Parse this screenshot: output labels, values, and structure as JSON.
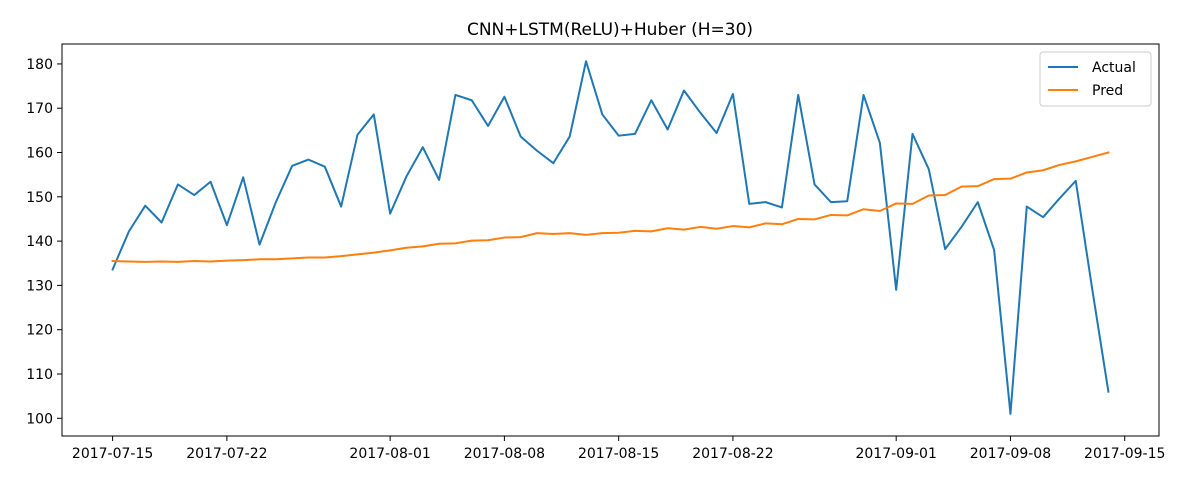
{
  "chart_data": {
    "type": "line",
    "title": "CNN+LSTM(ReLU)+Huber (H=30)",
    "xlabel": "",
    "ylabel": "",
    "x_dates": [
      "2017-07-15",
      "2017-07-16",
      "2017-07-17",
      "2017-07-18",
      "2017-07-19",
      "2017-07-20",
      "2017-07-21",
      "2017-07-22",
      "2017-07-23",
      "2017-07-24",
      "2017-07-25",
      "2017-07-26",
      "2017-07-27",
      "2017-07-28",
      "2017-07-29",
      "2017-07-30",
      "2017-07-31",
      "2017-08-01",
      "2017-08-02",
      "2017-08-03",
      "2017-08-04",
      "2017-08-05",
      "2017-08-06",
      "2017-08-07",
      "2017-08-08",
      "2017-08-09",
      "2017-08-10",
      "2017-08-11",
      "2017-08-12",
      "2017-08-13",
      "2017-08-14",
      "2017-08-15",
      "2017-08-16",
      "2017-08-17",
      "2017-08-18",
      "2017-08-19",
      "2017-08-20",
      "2017-08-21",
      "2017-08-22",
      "2017-08-23",
      "2017-08-24",
      "2017-08-25",
      "2017-08-26",
      "2017-08-27",
      "2017-08-28",
      "2017-08-29",
      "2017-08-30",
      "2017-08-31",
      "2017-09-01",
      "2017-09-02",
      "2017-09-03",
      "2017-09-04",
      "2017-09-05",
      "2017-09-06",
      "2017-09-07",
      "2017-09-08",
      "2017-09-09",
      "2017-09-10",
      "2017-09-11",
      "2017-09-12",
      "2017-09-13",
      "2017-09-14"
    ],
    "series": [
      {
        "name": "Actual",
        "color": "#1f77b4",
        "values": [
          133.6,
          142.2,
          148.0,
          144.2,
          152.8,
          150.4,
          153.4,
          143.6,
          154.4,
          139.2,
          148.8,
          157.0,
          158.4,
          156.8,
          147.8,
          164.0,
          168.6,
          146.2,
          154.6,
          161.2,
          153.8,
          173.0,
          171.8,
          166.0,
          172.6,
          163.6,
          160.4,
          157.6,
          163.6,
          180.6,
          168.6,
          163.8,
          164.2,
          171.8,
          165.2,
          174.0,
          169.0,
          164.4,
          173.2,
          148.4,
          148.8,
          147.6,
          173.0,
          152.8,
          148.8,
          149.0,
          173.0,
          162.2,
          129.0,
          164.2,
          156.2,
          138.2,
          143.2,
          148.8,
          138.0,
          101.0,
          147.8,
          145.4,
          149.6,
          153.6,
          129.4,
          106.0
        ]
      },
      {
        "name": "Pred",
        "color": "#ff7f0e",
        "values": [
          135.5,
          135.4,
          135.3,
          135.4,
          135.3,
          135.5,
          135.4,
          135.6,
          135.7,
          135.9,
          135.9,
          136.1,
          136.3,
          136.3,
          136.6,
          137.0,
          137.4,
          137.9,
          138.5,
          138.8,
          139.4,
          139.5,
          140.1,
          140.2,
          140.8,
          140.9,
          141.8,
          141.6,
          141.8,
          141.4,
          141.8,
          141.9,
          142.3,
          142.2,
          142.9,
          142.6,
          143.2,
          142.8,
          143.4,
          143.1,
          144.0,
          143.8,
          145.0,
          144.9,
          145.9,
          145.8,
          147.2,
          146.8,
          148.5,
          148.4,
          150.3,
          150.4,
          152.3,
          152.4,
          154.0,
          154.1,
          155.5,
          156.0,
          157.2,
          158.0,
          159.0,
          160.0
        ]
      }
    ],
    "x_ticks": [
      "2017-07-15",
      "2017-07-22",
      "2017-08-01",
      "2017-08-08",
      "2017-08-15",
      "2017-08-22",
      "2017-09-01",
      "2017-09-08",
      "2017-09-15"
    ],
    "y_ticks": [
      100,
      110,
      120,
      130,
      140,
      150,
      160,
      170,
      180
    ],
    "xlim": [
      "2017-07-11.9",
      "2017-09-17.1"
    ],
    "ylim": [
      96.0,
      184.5
    ],
    "grid": false,
    "legend_position": "top-right"
  }
}
